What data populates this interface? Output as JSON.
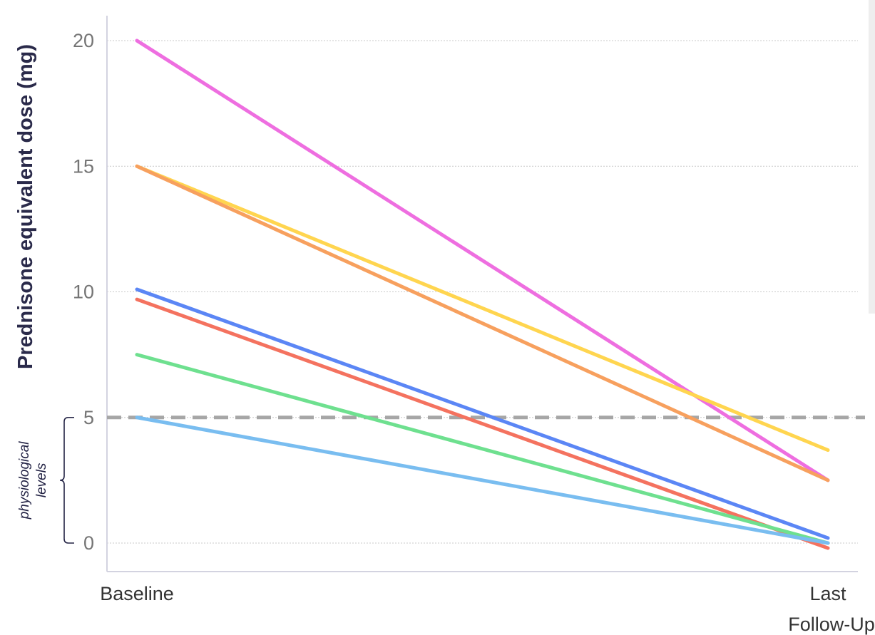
{
  "chart_data": {
    "type": "line",
    "xlabel": "",
    "ylabel": "Prednisone equivalent dose (mg)",
    "categories": [
      "Baseline",
      "Last\nFollow-Up"
    ],
    "ylim": [
      -1.2,
      21
    ],
    "yticks": [
      0,
      5,
      10,
      15,
      20
    ],
    "grid": true,
    "reference_line": {
      "y": 5,
      "style": "dashed",
      "color": "#a6a6a6"
    },
    "annotation": {
      "lines": [
        "physiological",
        "levels"
      ],
      "range": [
        0,
        5
      ]
    },
    "series": [
      {
        "color": "#ee6ee0",
        "values": [
          20,
          2.5
        ]
      },
      {
        "color": "#ffd54f",
        "values": [
          15,
          3.7
        ]
      },
      {
        "color": "#f7a05e",
        "values": [
          15,
          2.5
        ]
      },
      {
        "color": "#5b86f5",
        "values": [
          10.1,
          0.2
        ]
      },
      {
        "color": "#f4725f",
        "values": [
          9.7,
          -0.2
        ]
      },
      {
        "color": "#6ee08f",
        "values": [
          7.5,
          0
        ]
      },
      {
        "color": "#79bdf0",
        "values": [
          5,
          0
        ]
      }
    ]
  }
}
